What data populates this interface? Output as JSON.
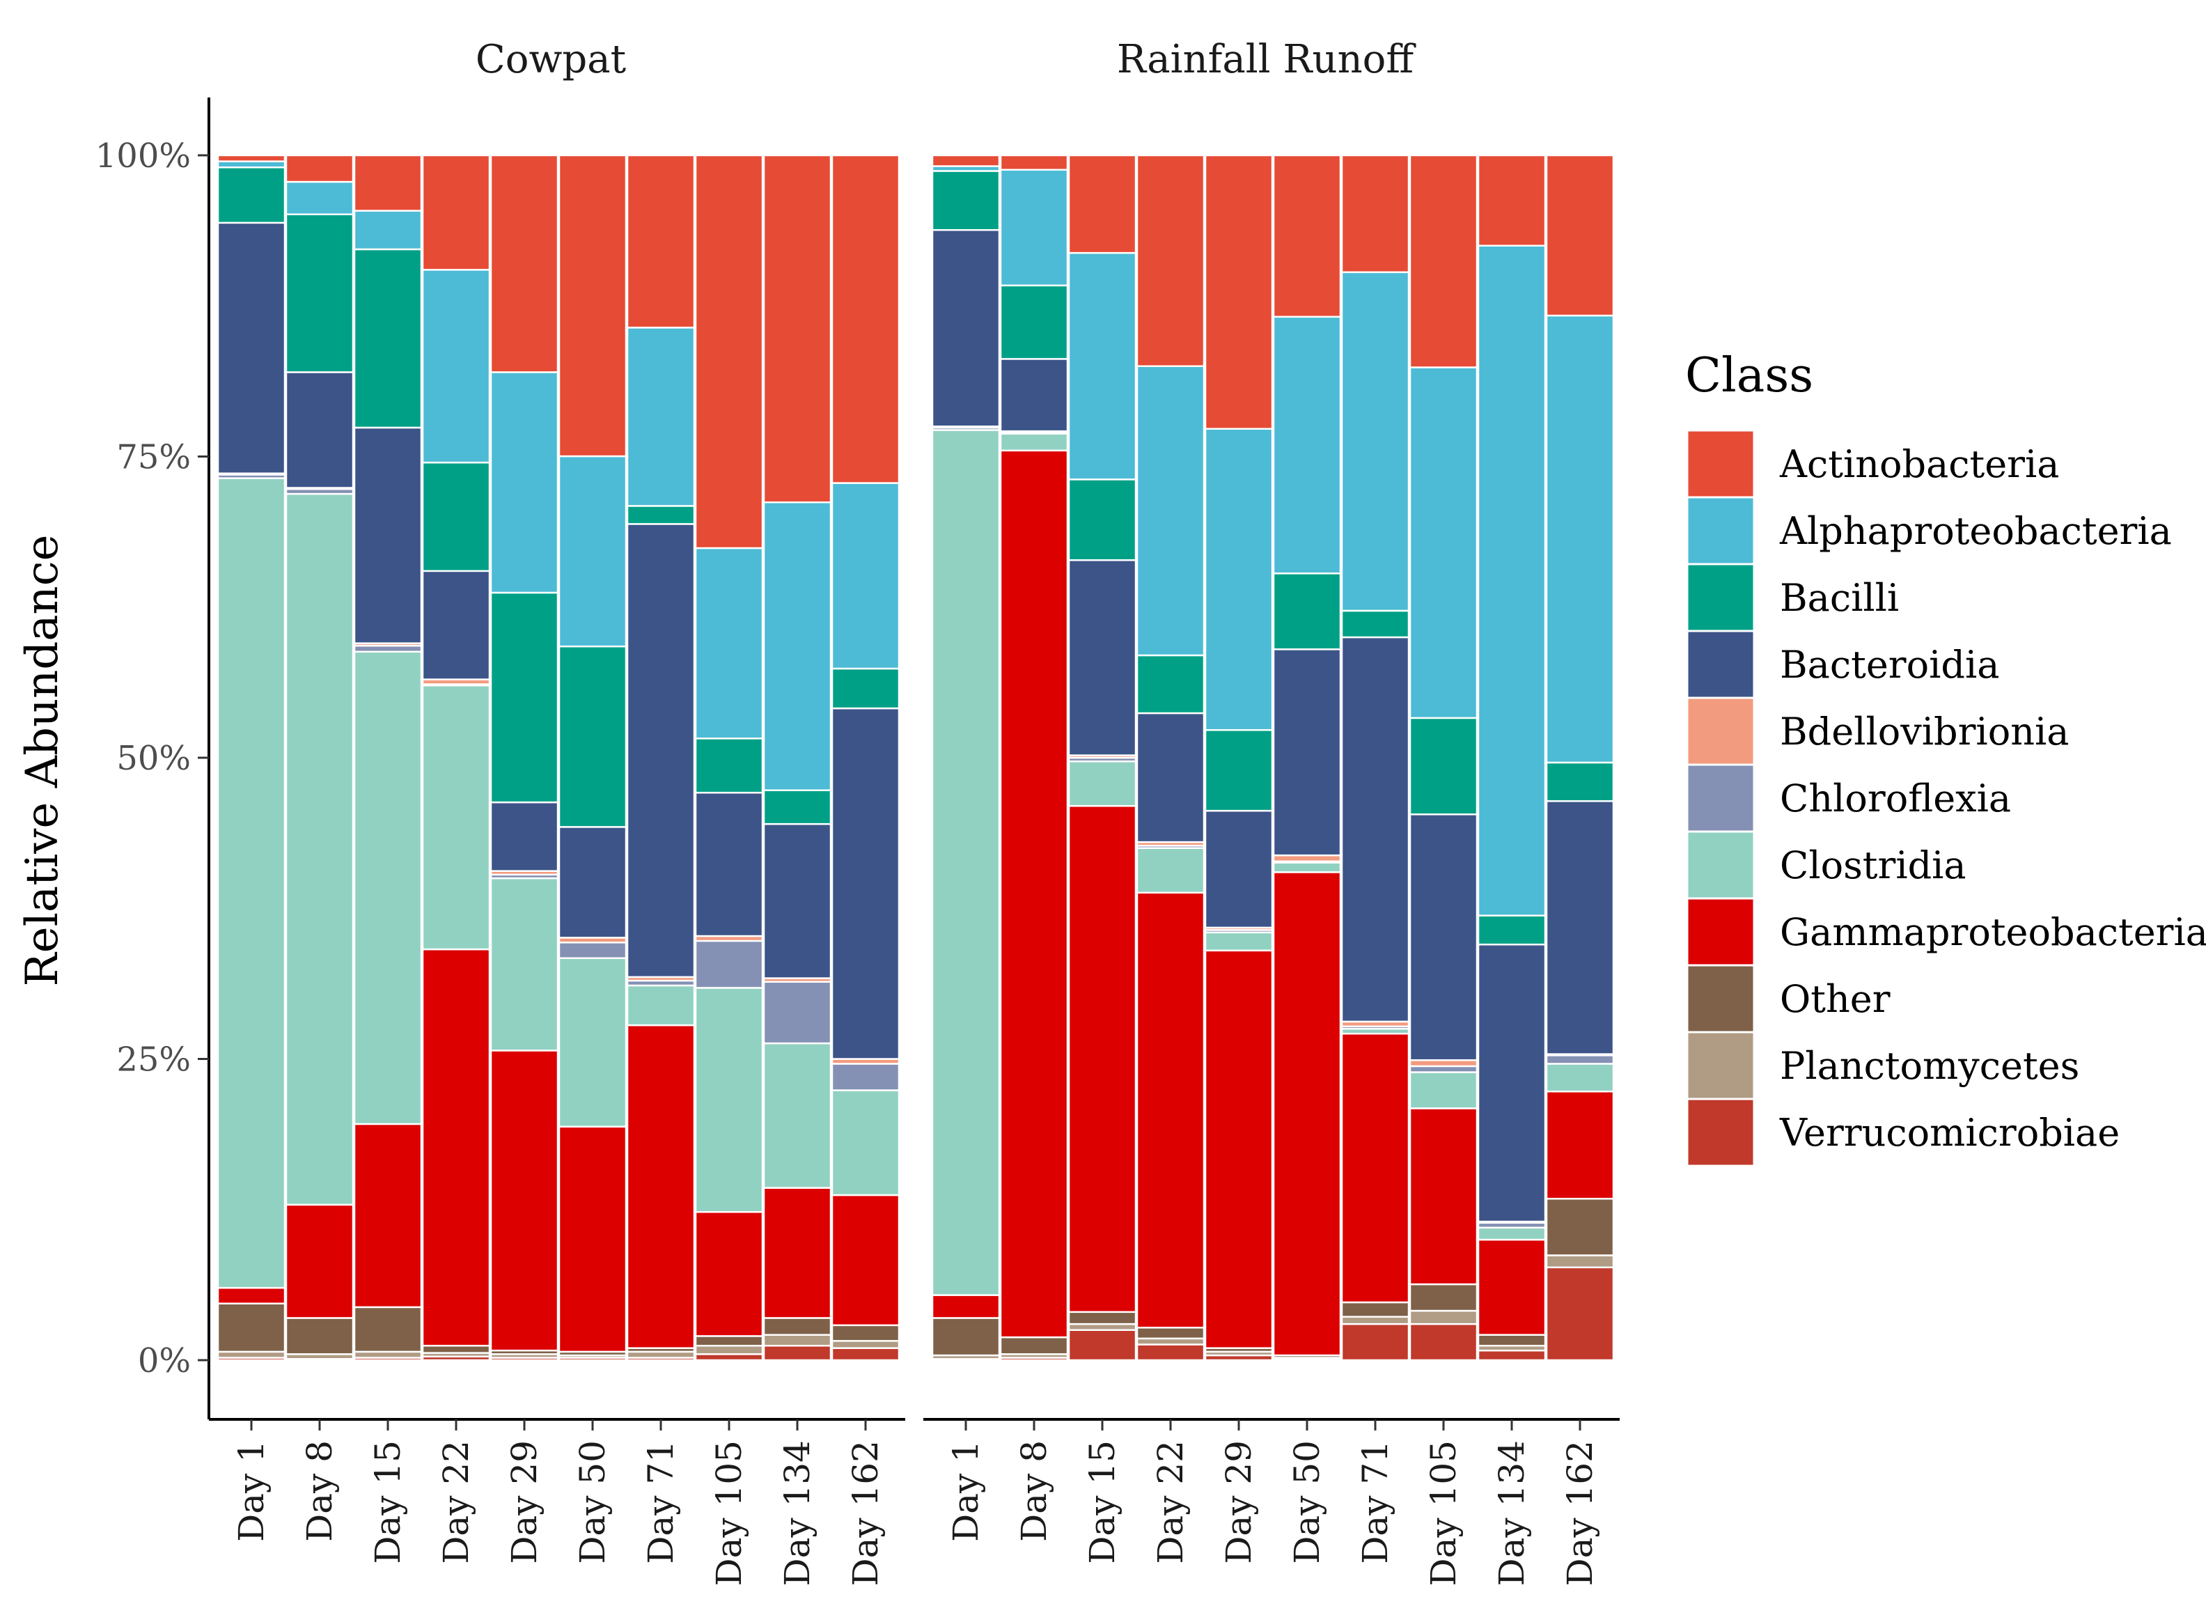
{
  "chart_data": {
    "type": "bar",
    "stacked": true,
    "ylabel": "Relative Abundance",
    "xlabel": "",
    "ylim": [
      0,
      100
    ],
    "yticks": [
      "0%",
      "25%",
      "50%",
      "75%",
      "100%"
    ],
    "categories": [
      "Day 1",
      "Day 8",
      "Day 15",
      "Day 22",
      "Day 29",
      "Day 50",
      "Day 71",
      "Day 105",
      "Day 134",
      "Day 162"
    ],
    "legend": {
      "title": "Class",
      "position": "right",
      "entries": [
        {
          "name": "Actinobacteria",
          "color": "#E64B35"
        },
        {
          "name": "Alphaproteobacteria",
          "color": "#4DBBD5"
        },
        {
          "name": "Bacilli",
          "color": "#00A087"
        },
        {
          "name": "Bacteroidia",
          "color": "#3C5488"
        },
        {
          "name": "Bdellovibrionia",
          "color": "#F39B7F"
        },
        {
          "name": "Chloroflexia",
          "color": "#8491B4"
        },
        {
          "name": "Clostridia",
          "color": "#91D1C2"
        },
        {
          "name": "Gammaproteobacteria",
          "color": "#DC0000"
        },
        {
          "name": "Other",
          "color": "#7E6148"
        },
        {
          "name": "Planctomycetes",
          "color": "#B09C85"
        },
        {
          "name": "Verrucomicrobiae",
          "color": "#C0392B"
        }
      ]
    },
    "stack_order_bottom_to_top": [
      "Verrucomicrobiae",
      "Planctomycetes",
      "Other",
      "Gammaproteobacteria",
      "Clostridia",
      "Chloroflexia",
      "Bdellovibrionia",
      "Bacteroidia",
      "Bacilli",
      "Alphaproteobacteria",
      "Actinobacteria"
    ],
    "facets": [
      {
        "title": "Cowpat",
        "series": [
          {
            "name": "Verrucomicrobiae",
            "values": [
              0.2,
              0.1,
              0.2,
              0.3,
              0.2,
              0.2,
              0.2,
              0.5,
              1.2,
              1.0
            ]
          },
          {
            "name": "Planctomycetes",
            "values": [
              0.5,
              0.4,
              0.5,
              0.3,
              0.3,
              0.2,
              0.5,
              0.7,
              0.9,
              0.6
            ]
          },
          {
            "name": "Other",
            "values": [
              4.0,
              3.0,
              3.7,
              0.6,
              0.3,
              0.3,
              0.3,
              0.8,
              1.4,
              1.3
            ]
          },
          {
            "name": "Gammaproteobacteria",
            "values": [
              1.3,
              9.4,
              15.2,
              32.9,
              24.9,
              18.7,
              26.8,
              10.3,
              10.8,
              10.8
            ]
          },
          {
            "name": "Clostridia",
            "values": [
              67.2,
              59.0,
              39.2,
              21.9,
              14.3,
              14.0,
              3.3,
              18.6,
              12.0,
              8.7
            ]
          },
          {
            "name": "Chloroflexia",
            "values": [
              0.3,
              0.4,
              0.5,
              0.1,
              0.3,
              1.3,
              0.4,
              3.9,
              5.1,
              2.2
            ]
          },
          {
            "name": "Bdellovibrionia",
            "values": [
              0.1,
              0.1,
              0.2,
              0.4,
              0.3,
              0.4,
              0.3,
              0.4,
              0.3,
              0.4
            ]
          },
          {
            "name": "Bacteroidia",
            "values": [
              20.8,
              9.6,
              17.9,
              9.0,
              5.7,
              9.2,
              37.6,
              11.9,
              12.8,
              29.1
            ]
          },
          {
            "name": "Bacilli",
            "values": [
              4.6,
              13.1,
              14.8,
              9.0,
              17.4,
              15.0,
              1.5,
              4.5,
              2.8,
              3.3
            ]
          },
          {
            "name": "Alphaproteobacteria",
            "values": [
              0.5,
              2.7,
              3.2,
              16.0,
              18.3,
              15.8,
              14.8,
              15.8,
              23.9,
              15.4
            ]
          },
          {
            "name": "Actinobacteria",
            "values": [
              0.5,
              2.2,
              4.6,
              9.5,
              18.0,
              25.0,
              14.3,
              32.6,
              28.8,
              27.2
            ]
          }
        ]
      },
      {
        "title": "Rainfall Runoff",
        "series": [
          {
            "name": "Verrucomicrobiae",
            "values": [
              0.1,
              0.2,
              2.5,
              1.3,
              0.4,
              0.1,
              3.0,
              3.0,
              0.8,
              7.7
            ]
          },
          {
            "name": "Planctomycetes",
            "values": [
              0.3,
              0.3,
              0.5,
              0.5,
              0.3,
              0.1,
              0.6,
              1.1,
              0.4,
              1.0
            ]
          },
          {
            "name": "Other",
            "values": [
              3.1,
              1.4,
              1.0,
              0.9,
              0.3,
              0.2,
              1.2,
              2.2,
              0.9,
              4.7
            ]
          },
          {
            "name": "Gammaproteobacteria",
            "values": [
              1.9,
              73.6,
              42.0,
              36.1,
              33.0,
              40.1,
              22.3,
              14.6,
              7.9,
              8.9
            ]
          },
          {
            "name": "Clostridia",
            "values": [
              71.8,
              1.4,
              3.7,
              3.7,
              1.5,
              0.8,
              0.4,
              3.0,
              1.0,
              2.3
            ]
          },
          {
            "name": "Chloroflexia",
            "values": [
              0.2,
              0.1,
              0.3,
              0.2,
              0.2,
              0.1,
              0.2,
              0.5,
              0.4,
              0.7
            ]
          },
          {
            "name": "Bdellovibrionia",
            "values": [
              0.1,
              0.1,
              0.2,
              0.3,
              0.2,
              0.5,
              0.4,
              0.5,
              0.1,
              0.1
            ]
          },
          {
            "name": "Bacteroidia",
            "values": [
              16.3,
              6.0,
              16.2,
              10.7,
              9.7,
              17.1,
              31.9,
              20.4,
              23.0,
              21.0
            ]
          },
          {
            "name": "Bacilli",
            "values": [
              4.9,
              6.1,
              6.7,
              4.8,
              6.7,
              6.3,
              2.2,
              8.0,
              2.4,
              3.2
            ]
          },
          {
            "name": "Alphaproteobacteria",
            "values": [
              0.4,
              9.6,
              18.8,
              24.0,
              25.0,
              21.3,
              28.1,
              29.1,
              55.6,
              37.1
            ]
          },
          {
            "name": "Actinobacteria",
            "values": [
              0.9,
              1.2,
              8.1,
              17.5,
              22.7,
              13.4,
              9.7,
              17.6,
              7.5,
              13.3
            ]
          }
        ]
      }
    ]
  }
}
